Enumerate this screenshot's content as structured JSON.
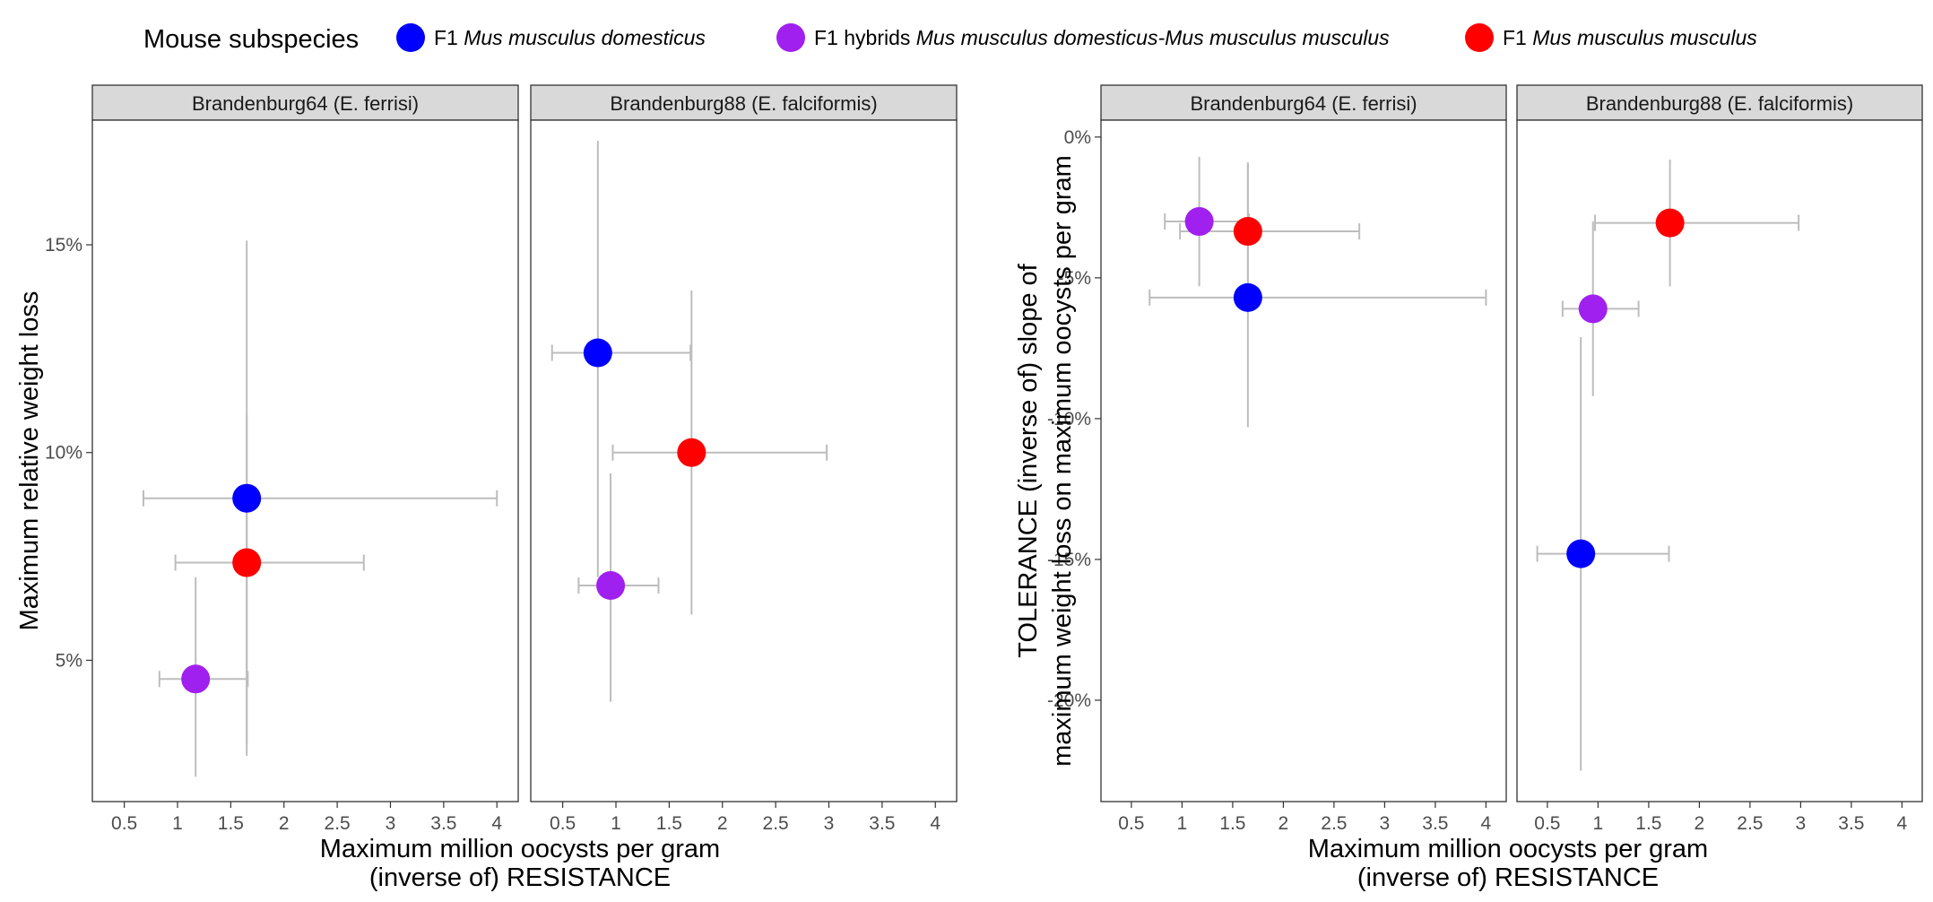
{
  "legend": {
    "title": "Mouse  subspecies",
    "items": [
      {
        "id": "dom",
        "color": "#0000ff",
        "prefix": "F1",
        "italic": "Mus musculus domesticus",
        "suffix": ""
      },
      {
        "id": "hyb",
        "color": "#a020f0",
        "prefix": "F1 hybrids",
        "italic": "Mus musculus domesticus-Mus musculus musculus",
        "suffix": ""
      },
      {
        "id": "mus",
        "color": "#ff0000",
        "prefix": "F1",
        "italic": "Mus musculus musculus",
        "suffix": ""
      }
    ]
  },
  "chart_data": [
    {
      "type": "scatter",
      "title": "",
      "xlabel": [
        "Maximum million oocysts per gram",
        "(inverse of) RESISTANCE"
      ],
      "ylabel": [
        "Maximum relative weight loss"
      ],
      "xlim": [
        0.2,
        4.2
      ],
      "ylim": [
        1.6,
        18.0
      ],
      "xticks": [
        0.5,
        1,
        1.5,
        2,
        2.5,
        3,
        3.5,
        4
      ],
      "xtick_labels": [
        "0.5",
        "1",
        "1.5",
        "2",
        "2.5",
        "3",
        "3.5",
        "4"
      ],
      "yticks": [
        5,
        10,
        15
      ],
      "ytick_labels": [
        "5%",
        "10%",
        "15%"
      ],
      "grid": false,
      "legend": "top",
      "facets": [
        {
          "strip": "Brandenburg64 (E. ferrisi)",
          "points": [
            {
              "series": "dom",
              "x": 1.65,
              "y": 8.9,
              "xmin": 0.68,
              "xmax": 4.0,
              "ymin": 3.0,
              "ymax": 15.1
            },
            {
              "series": "mus",
              "x": 1.65,
              "y": 7.35,
              "xmin": 0.98,
              "xmax": 2.75,
              "ymin": 2.7,
              "ymax": 10.9
            },
            {
              "series": "hyb",
              "x": 1.17,
              "y": 4.55,
              "xmin": 0.83,
              "xmax": 1.66,
              "ymin": 2.2,
              "ymax": 7.0
            }
          ]
        },
        {
          "strip": "Brandenburg88 (E. falciformis)",
          "points": [
            {
              "series": "dom",
              "x": 0.83,
              "y": 12.4,
              "xmin": 0.4,
              "xmax": 1.7,
              "ymin": 7.0,
              "ymax": 17.5
            },
            {
              "series": "mus",
              "x": 1.71,
              "y": 10.0,
              "xmin": 0.97,
              "xmax": 2.98,
              "ymin": 6.1,
              "ymax": 13.9
            },
            {
              "series": "hyb",
              "x": 0.95,
              "y": 6.8,
              "xmin": 0.65,
              "xmax": 1.4,
              "ymin": 4.0,
              "ymax": 9.5
            }
          ]
        }
      ]
    },
    {
      "type": "scatter",
      "title": "",
      "xlabel": [
        "Maximum million oocysts per gram",
        "(inverse of) RESISTANCE"
      ],
      "ylabel": [
        "TOLERANCE (inverse of) slope of",
        "maximum weight loss on maximum oocysts per gram"
      ],
      "xlim": [
        0.2,
        4.2
      ],
      "ylim": [
        -23.6,
        0.6
      ],
      "xticks": [
        0.5,
        1,
        1.5,
        2,
        2.5,
        3,
        3.5,
        4
      ],
      "xtick_labels": [
        "0.5",
        "1",
        "1.5",
        "2",
        "2.5",
        "3",
        "3.5",
        "4"
      ],
      "yticks": [
        0,
        -5,
        -10,
        -15,
        -20
      ],
      "ytick_labels": [
        "0%",
        "-5%",
        "-10%",
        "-15%",
        "-20%"
      ],
      "grid": false,
      "legend": "top",
      "facets": [
        {
          "strip": "Brandenburg64 (E. ferrisi)",
          "points": [
            {
              "series": "hyb",
              "x": 1.17,
              "y": -3.0,
              "xmin": 0.83,
              "xmax": 1.66,
              "ymin": -5.3,
              "ymax": -0.7
            },
            {
              "series": "mus",
              "x": 1.65,
              "y": -3.35,
              "xmin": 0.98,
              "xmax": 2.75,
              "ymin": -5.8,
              "ymax": -0.9
            },
            {
              "series": "dom",
              "x": 1.65,
              "y": -5.7,
              "xmin": 0.68,
              "xmax": 4.0,
              "ymin": -10.3,
              "ymax": -1.0
            }
          ]
        },
        {
          "strip": "Brandenburg88 (E. falciformis)",
          "points": [
            {
              "series": "mus",
              "x": 1.71,
              "y": -3.05,
              "xmin": 0.97,
              "xmax": 2.98,
              "ymin": -5.3,
              "ymax": -0.8
            },
            {
              "series": "hyb",
              "x": 0.95,
              "y": -6.1,
              "xmin": 0.65,
              "xmax": 1.4,
              "ymin": -9.2,
              "ymax": -3.0
            },
            {
              "series": "dom",
              "x": 0.83,
              "y": -14.8,
              "xmin": 0.4,
              "xmax": 1.7,
              "ymin": -22.5,
              "ymax": -7.1
            }
          ]
        }
      ]
    }
  ]
}
